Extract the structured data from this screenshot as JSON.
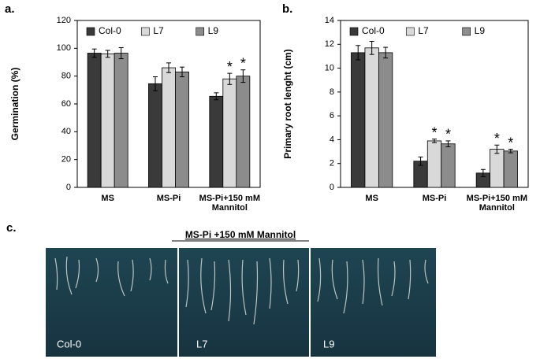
{
  "chart_data": [
    {
      "type": "bar",
      "title": "a.",
      "ylabel": "Germination (%)",
      "categories": [
        "MS",
        "MS-Pi",
        "MS-Pi+150 mM Mannitol"
      ],
      "series": [
        {
          "name": "Col-0",
          "color": "#3a3a3a",
          "values": [
            96.5,
            74.5,
            65.5
          ],
          "errors": [
            3,
            5,
            2.5
          ]
        },
        {
          "name": "L7",
          "color": "#d9d9d9",
          "values": [
            96,
            86,
            78
          ],
          "errors": [
            2.5,
            3.5,
            4
          ]
        },
        {
          "name": "L9",
          "color": "#8c8c8c",
          "values": [
            96.5,
            83,
            80
          ],
          "errors": [
            4,
            3.5,
            4.5
          ]
        }
      ],
      "ylim": [
        0,
        120
      ],
      "yticks": [
        0,
        20,
        40,
        60,
        80,
        100,
        120
      ],
      "legend": "top",
      "annotations": [
        {
          "text": "*",
          "series": "L7",
          "category": "MS-Pi+150 mM Mannitol"
        },
        {
          "text": "*",
          "series": "L9",
          "category": "MS-Pi+150 mM Mannitol"
        }
      ]
    },
    {
      "type": "bar",
      "title": "b.",
      "ylabel": "Primary root lenght (cm)",
      "categories": [
        "MS",
        "MS-Pi",
        "MS-Pi+150 mM Mannitol"
      ],
      "series": [
        {
          "name": "Col-0",
          "color": "#3a3a3a",
          "values": [
            11.3,
            2.2,
            1.2
          ],
          "errors": [
            0.6,
            0.35,
            0.3
          ]
        },
        {
          "name": "L7",
          "color": "#d9d9d9",
          "values": [
            11.7,
            3.9,
            3.2
          ],
          "errors": [
            0.55,
            0.15,
            0.35
          ]
        },
        {
          "name": "L9",
          "color": "#8c8c8c",
          "values": [
            11.3,
            3.65,
            3.05
          ],
          "errors": [
            0.45,
            0.25,
            0.15
          ]
        }
      ],
      "ylim": [
        0,
        14
      ],
      "yticks": [
        0,
        2,
        4,
        6,
        8,
        10,
        12,
        14
      ],
      "legend": "top",
      "annotations": [
        {
          "text": "*",
          "series": "L7",
          "category": "MS-Pi"
        },
        {
          "text": "*",
          "series": "L9",
          "category": "MS-Pi"
        },
        {
          "text": "*",
          "series": "L7",
          "category": "MS-Pi+150 mM Mannitol"
        },
        {
          "text": "*",
          "series": "L9",
          "category": "MS-Pi+150 mM Mannitol"
        }
      ]
    }
  ],
  "photo_panel": {
    "label": "c.",
    "title": "MS-Pi +150 mM Mannitol",
    "tiles": [
      "Col-0",
      "L7",
      "L9"
    ]
  }
}
